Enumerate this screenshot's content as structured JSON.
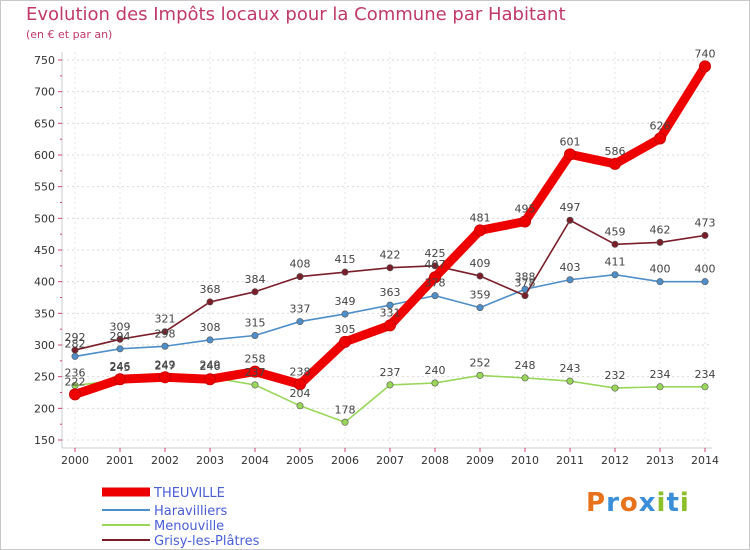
{
  "chart_data": {
    "type": "line",
    "title": "Evolution des Impôts locaux pour la Commune par Habitant",
    "subtitle": "(en € et par an)",
    "x": [
      "2000",
      "2001",
      "2002",
      "2003",
      "2004",
      "2005",
      "2006",
      "2007",
      "2008",
      "2009",
      "2010",
      "2011",
      "2012",
      "2013",
      "2014"
    ],
    "ylim": [
      150,
      750
    ],
    "yticks": [
      150,
      200,
      250,
      300,
      350,
      400,
      450,
      500,
      550,
      600,
      650,
      700,
      750
    ],
    "grid": true,
    "legend_position": "bottom-left",
    "series": [
      {
        "name": "THEUVILLE",
        "color": "#ee0000",
        "values": [
          222,
          246,
          249,
          246,
          258,
          238,
          305,
          331,
          407,
          481,
          495,
          601,
          586,
          626,
          740
        ]
      },
      {
        "name": "Haravilliers",
        "color": "#4f8fc9",
        "values": [
          282,
          294,
          298,
          308,
          315,
          337,
          349,
          363,
          378,
          359,
          388,
          403,
          411,
          400,
          400
        ]
      },
      {
        "name": "Menouville",
        "color": "#9ad65a",
        "values": [
          236,
          245,
          247,
          249,
          237,
          204,
          178,
          237,
          240,
          252,
          248,
          243,
          232,
          234,
          234
        ]
      },
      {
        "name": "Grisy-les-Plâtres",
        "color": "#7a1f2a",
        "values": [
          292,
          309,
          321,
          368,
          384,
          408,
          415,
          422,
          425,
          409,
          378,
          497,
          459,
          462,
          473
        ]
      }
    ]
  },
  "brand": {
    "name": "Proxiti",
    "letters": [
      "P",
      "r",
      "o",
      "x",
      "i",
      "t",
      "i"
    ],
    "colors": [
      "#e8721c",
      "#3a8fd8",
      "#e8721c",
      "#3a8fd8",
      "#8bbf2a",
      "#3a8fd8",
      "#8bbf2a"
    ]
  }
}
